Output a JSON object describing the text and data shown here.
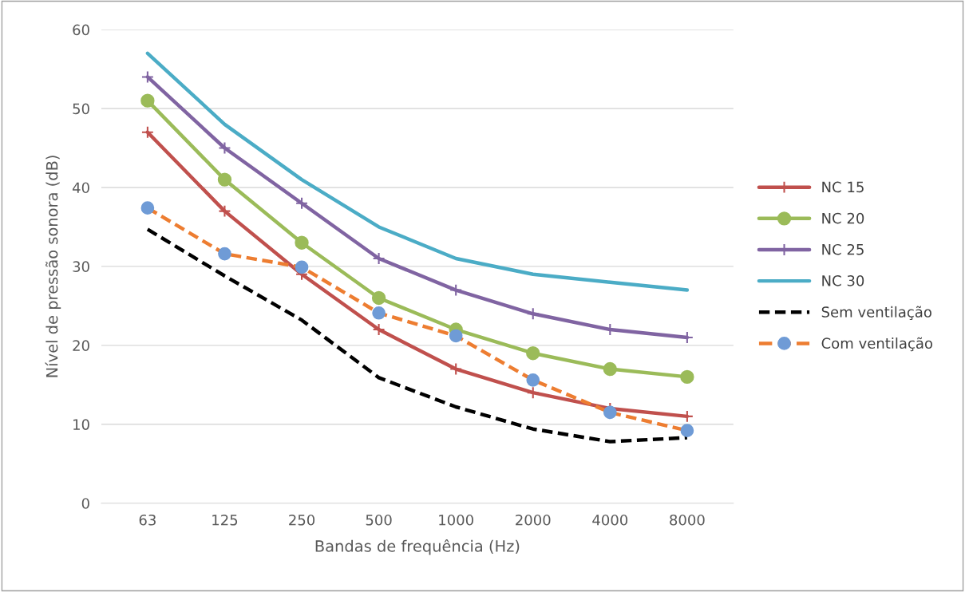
{
  "chart_data": {
    "type": "line",
    "xlabel": "Bandas de frequência (Hz)",
    "ylabel": "Nível de pressão sonora (dB)",
    "categories": [
      "63",
      "125",
      "250",
      "500",
      "1000",
      "2000",
      "4000",
      "8000"
    ],
    "ylim": [
      0,
      60
    ],
    "yticks": [
      0,
      10,
      20,
      30,
      40,
      50,
      60
    ],
    "grid": "y",
    "legend": "right",
    "series": [
      {
        "name": "NC 15",
        "color": "#c0504d",
        "marker": "cross",
        "line_style": "solid",
        "values": [
          47,
          37,
          29,
          22,
          17,
          14,
          12,
          11
        ]
      },
      {
        "name": "NC 20",
        "color": "#9bbb59",
        "marker": "circle",
        "line_style": "solid",
        "values": [
          51,
          41,
          33,
          26,
          22,
          19,
          17,
          16
        ]
      },
      {
        "name": "NC 25",
        "color": "#8064a2",
        "marker": "cross",
        "line_style": "solid",
        "values": [
          54,
          45,
          38,
          31,
          27,
          24,
          22,
          21
        ]
      },
      {
        "name": "NC 30",
        "color": "#4bacc6",
        "marker": "none",
        "line_style": "solid",
        "values": [
          57,
          48,
          41,
          35,
          31,
          29,
          28,
          27
        ]
      },
      {
        "name": "Sem ventilação",
        "color": "#000000",
        "marker": "none",
        "line_style": "dashed",
        "values": [
          34.7,
          28.8,
          23.2,
          15.9,
          12.2,
          9.4,
          7.8,
          8.3
        ]
      },
      {
        "name": "Com ventilação",
        "color": "#ed7d31",
        "marker": "circle",
        "colors": [
          "#6f9bd6",
          "#6f9bd6",
          "#6f9bd6",
          "#6f9bd6",
          "#6f9bd6",
          "#6f9bd6",
          "#6f9bd6",
          "#6f9bd6"
        ],
        "line_style": "dashed",
        "values": [
          37.4,
          31.6,
          29.9,
          24.1,
          21.2,
          15.6,
          11.5,
          9.2
        ]
      }
    ]
  }
}
